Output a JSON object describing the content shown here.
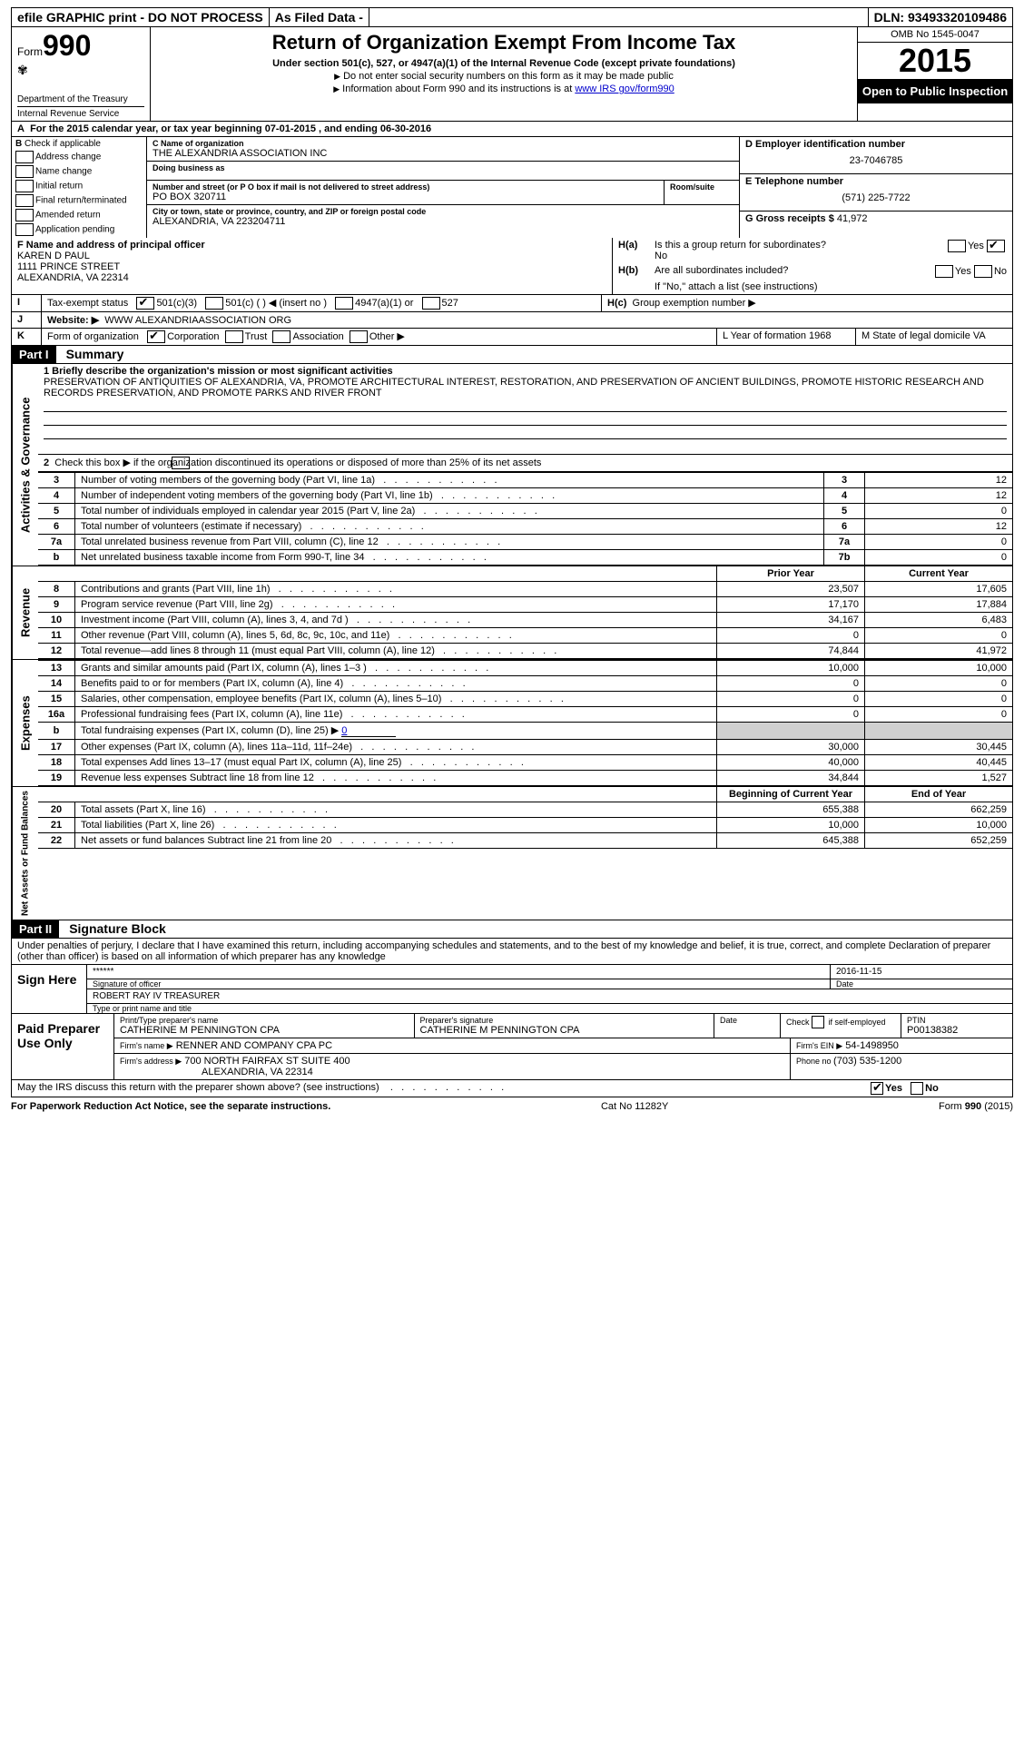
{
  "topbar": {
    "efile": "efile GRAPHIC print - DO NOT PROCESS",
    "asfiled": "As Filed Data -",
    "dln_label": "DLN:",
    "dln": "93493320109486"
  },
  "header": {
    "form_word": "Form",
    "form_num": "990",
    "dept": "Department of the Treasury",
    "irs": "Internal Revenue Service",
    "title": "Return of Organization Exempt From Income Tax",
    "sub": "Under section 501(c), 527, or 4947(a)(1) of the Internal Revenue Code (except private foundations)",
    "note1": "Do not enter social security numbers on this form as it may be made public",
    "note2_pre": "Information about Form 990 and its instructions is at ",
    "note2_link": "www IRS gov/form990",
    "omb": "OMB No  1545-0047",
    "year": "2015",
    "open": "Open to Public Inspection"
  },
  "A": {
    "text_pre": "For the 2015 calendar year, or tax year beginning ",
    "begin": "07-01-2015",
    "mid": " , and ending ",
    "end": "06-30-2016"
  },
  "B": {
    "label": "Check if applicable",
    "items": [
      "Address change",
      "Name change",
      "Initial return",
      "Final return/terminated",
      "Amended return",
      "Application pending"
    ]
  },
  "C": {
    "name_label": "C Name of organization",
    "name": "THE ALEXANDRIA ASSOCIATION INC",
    "dba_label": "Doing business as",
    "dba": "",
    "addr_label": "Number and street (or P O  box if mail is not delivered to street address)",
    "room_label": "Room/suite",
    "addr": "PO BOX 320711",
    "city_label": "City or town, state or province, country, and ZIP or foreign postal code",
    "city": "ALEXANDRIA, VA  223204711"
  },
  "D": {
    "label": "D Employer identification number",
    "val": "23-7046785"
  },
  "E": {
    "label": "E Telephone number",
    "val": "(571) 225-7722"
  },
  "G": {
    "label": "G Gross receipts $",
    "val": "41,972"
  },
  "F": {
    "label": "F  Name and address of principal officer",
    "name": "KAREN D PAUL",
    "street": "1111 PRINCE STREET",
    "csz": "ALEXANDRIA, VA  22314"
  },
  "H": {
    "a": "Is this a group return for subordinates?",
    "a_no": "No",
    "b": "Are all subordinates included?",
    "b_note": "If \"No,\" attach a list  (see instructions)",
    "c": "Group exemption number ▶",
    "yes": "Yes",
    "no": "No",
    "ha": "H(a)",
    "hb": "H(b)",
    "hc": "H(c)"
  },
  "I": {
    "label": "Tax-exempt status",
    "opts": [
      "501(c)(3)",
      "501(c) (  ) ◀ (insert no )",
      "4947(a)(1) or",
      "527"
    ]
  },
  "J": {
    "label": "Website: ▶",
    "val": "WWW ALEXANDRIAASSOCIATION ORG"
  },
  "K": {
    "label": "Form of organization",
    "opts": [
      "Corporation",
      "Trust",
      "Association",
      "Other ▶"
    ]
  },
  "L": {
    "label": "L Year of formation  1968"
  },
  "M": {
    "label": "M State of legal domicile  VA"
  },
  "partI": {
    "hdr": "Part I",
    "title": "Summary"
  },
  "summary": {
    "q1_label": "1 Briefly describe the organization's mission or most significant activities",
    "q1_text": "PRESERVATION OF ANTIQUITIES OF ALEXANDRIA, VA, PROMOTE ARCHITECTURAL INTEREST, RESTORATION, AND PRESERVATION OF ANCIENT BUILDINGS, PROMOTE HISTORIC RESEARCH AND RECORDS PRESERVATION, AND PROMOTE PARKS AND RIVER FRONT",
    "q2": "Check this box ▶        if the organization discontinued its operations or disposed of more than 25% of its net assets",
    "lines_top": [
      {
        "n": "3",
        "d": "Number of voting members of the governing body (Part VI, line 1a)",
        "l": "3",
        "v": "12"
      },
      {
        "n": "4",
        "d": "Number of independent voting members of the governing body (Part VI, line 1b)",
        "l": "4",
        "v": "12"
      },
      {
        "n": "5",
        "d": "Total number of individuals employed in calendar year 2015 (Part V, line 2a)",
        "l": "5",
        "v": "0"
      },
      {
        "n": "6",
        "d": "Total number of volunteers (estimate if necessary)",
        "l": "6",
        "v": "12"
      },
      {
        "n": "7a",
        "d": "Total unrelated business revenue from Part VIII, column (C), line 12",
        "l": "7a",
        "v": "0"
      },
      {
        "n": "b",
        "d": "Net unrelated business taxable income from Form 990-T, line 34",
        "l": "7b",
        "v": "0"
      }
    ],
    "col_prior": "Prior Year",
    "col_curr": "Current Year",
    "revenue": [
      {
        "n": "8",
        "d": "Contributions and grants (Part VIII, line 1h)",
        "p": "23,507",
        "c": "17,605"
      },
      {
        "n": "9",
        "d": "Program service revenue (Part VIII, line 2g)",
        "p": "17,170",
        "c": "17,884"
      },
      {
        "n": "10",
        "d": "Investment income (Part VIII, column (A), lines 3, 4, and 7d )",
        "p": "34,167",
        "c": "6,483"
      },
      {
        "n": "11",
        "d": "Other revenue (Part VIII, column (A), lines 5, 6d, 8c, 9c, 10c, and 11e)",
        "p": "0",
        "c": "0"
      },
      {
        "n": "12",
        "d": "Total revenue—add lines 8 through 11 (must equal Part VIII, column (A), line 12)",
        "p": "74,844",
        "c": "41,972"
      }
    ],
    "expenses": [
      {
        "n": "13",
        "d": "Grants and similar amounts paid (Part IX, column (A), lines 1–3 )",
        "p": "10,000",
        "c": "10,000"
      },
      {
        "n": "14",
        "d": "Benefits paid to or for members (Part IX, column (A), line 4)",
        "p": "0",
        "c": "0"
      },
      {
        "n": "15",
        "d": "Salaries, other compensation, employee benefits (Part IX, column (A), lines 5–10)",
        "p": "0",
        "c": "0"
      },
      {
        "n": "16a",
        "d": "Professional fundraising fees (Part IX, column (A), line 11e)",
        "p": "0",
        "c": "0"
      }
    ],
    "exp_b": {
      "n": "b",
      "d": "Total fundraising expenses (Part IX, column (D), line 25) ▶",
      "u": "0"
    },
    "expenses2": [
      {
        "n": "17",
        "d": "Other expenses (Part IX, column (A), lines 11a–11d, 11f–24e)",
        "p": "30,000",
        "c": "30,445"
      },
      {
        "n": "18",
        "d": "Total expenses  Add lines 13–17 (must equal Part IX, column (A), line 25)",
        "p": "40,000",
        "c": "40,445"
      },
      {
        "n": "19",
        "d": "Revenue less expenses  Subtract line 18 from line 12",
        "p": "34,844",
        "c": "1,527"
      }
    ],
    "col_boy": "Beginning of Current Year",
    "col_eoy": "End of Year",
    "netassets": [
      {
        "n": "20",
        "d": "Total assets (Part X, line 16)",
        "p": "655,388",
        "c": "662,259"
      },
      {
        "n": "21",
        "d": "Total liabilities (Part X, line 26)",
        "p": "10,000",
        "c": "10,000"
      },
      {
        "n": "22",
        "d": "Net assets or fund balances  Subtract line 21 from line 20",
        "p": "645,388",
        "c": "652,259"
      }
    ],
    "side_ag": "Activities & Governance",
    "side_rev": "Revenue",
    "side_exp": "Expenses",
    "side_na": "Net Assets or Fund Balances"
  },
  "partII": {
    "hdr": "Part II",
    "title": "Signature Block"
  },
  "perjury": "Under penalties of perjury, I declare that I have examined this return, including accompanying schedules and statements, and to the best of my knowledge and belief, it is true, correct, and complete  Declaration of preparer (other than officer) is based on all information of which preparer has any knowledge",
  "sign": {
    "here": "Sign Here",
    "stars": "******",
    "sig_label": "Signature of officer",
    "date": "2016-11-15",
    "date_label": "Date",
    "name": "ROBERT RAY IV TREASURER",
    "name_label": "Type or print name and title"
  },
  "paid": {
    "left": "Paid Preparer Use Only",
    "pname_label": "Print/Type preparer's name",
    "pname": "CATHERINE M PENNINGTON CPA",
    "psig_label": "Preparer's signature",
    "psig": "CATHERINE M PENNINGTON CPA",
    "pdate_label": "Date",
    "self_label": "Check          if self-employed",
    "ptin_label": "PTIN",
    "ptin": "P00138382",
    "firm_label": "Firm's name      ▶",
    "firm": "RENNER AND COMPANY CPA PC",
    "ein_label": "Firm's EIN ▶",
    "ein": "54-1498950",
    "addr_label": "Firm's address ▶",
    "addr": "700 NORTH FAIRFAX ST SUITE 400",
    "addr2": "ALEXANDRIA, VA  22314",
    "phone_label": "Phone no  ",
    "phone": "(703) 535-1200"
  },
  "may": "May the IRS discuss this return with the preparer shown above? (see instructions)",
  "footer": {
    "pra": "For Paperwork Reduction Act Notice, see the separate instructions.",
    "cat": "Cat  No  11282Y",
    "form": "Form 990 (2015)"
  },
  "labels": {
    "B": "B",
    "I": "I",
    "J": "J",
    "K": "K",
    "A": "A",
    "two": "2",
    "yes": "Yes",
    "no": "No"
  }
}
